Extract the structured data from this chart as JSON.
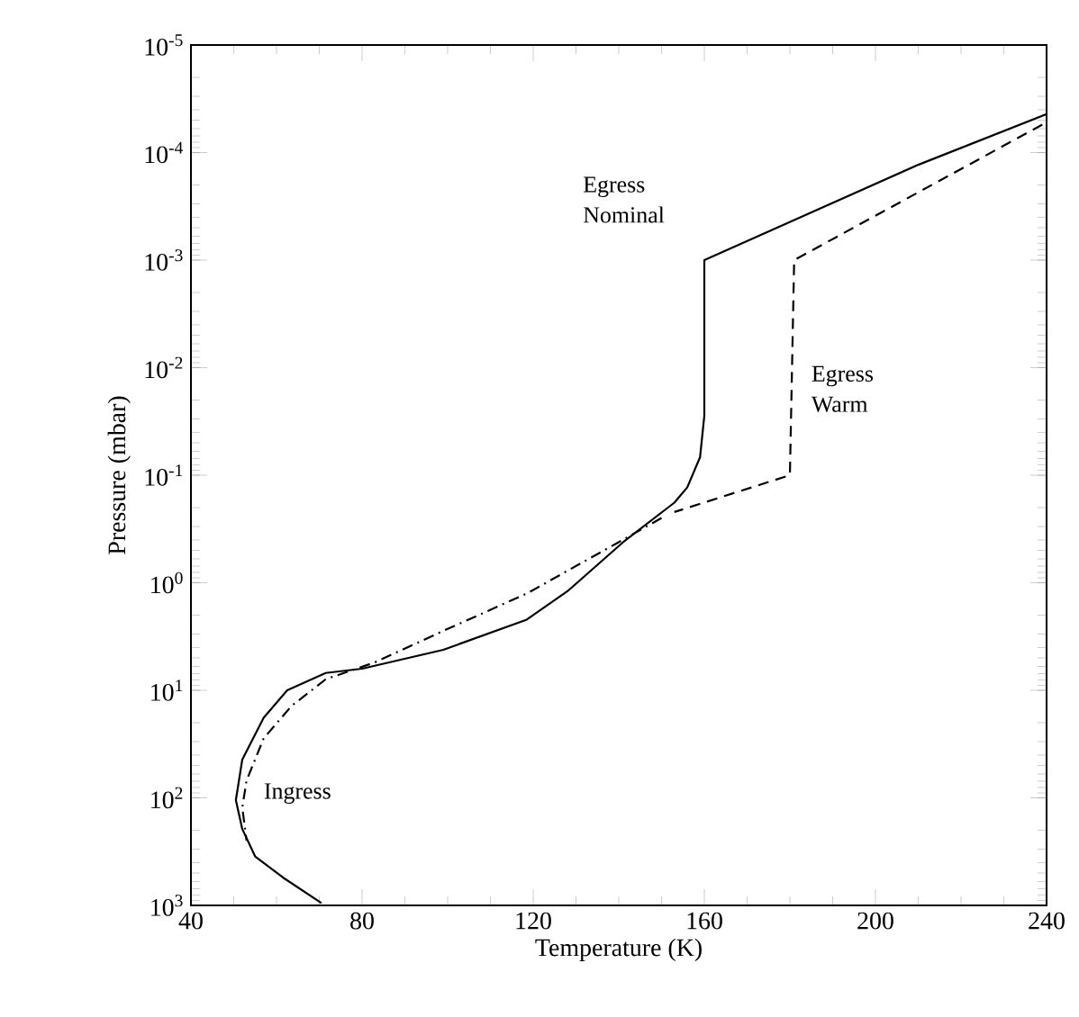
{
  "chart_data": {
    "type": "line",
    "xlabel": "Temperature (K)",
    "ylabel": "Pressure (mbar)",
    "log": "y",
    "marker": "none",
    "grid": false,
    "xlim": [
      40,
      240
    ],
    "xticks": [
      40,
      80,
      120,
      160,
      200,
      240
    ],
    "ylim": [
      1000,
      1e-05
    ],
    "yticks": [
      {
        "value": 1e-05,
        "label": "10$^{-5}$"
      },
      {
        "value": 0.0001,
        "label": "10$^{-4}$"
      },
      {
        "value": 0.001,
        "label": "10$^{-3}$"
      },
      {
        "value": 0.01,
        "label": "10$^{-2}$"
      },
      {
        "value": 0.1,
        "label": "10$^{-1}$"
      },
      {
        "value": 1,
        "label": "10$^{0}$"
      },
      {
        "value": 10,
        "label": "10$^{1}$"
      },
      {
        "value": 100,
        "label": "10$^{2}$"
      },
      {
        "value": 1000,
        "label": "10$^{3}$"
      }
    ],
    "series": [
      {
        "name": "Egress Nominal",
        "color": "#000000",
        "line_style": "solid",
        "x": [
          240,
          210,
          160,
          160,
          159,
          156,
          153,
          141,
          128,
          118.5,
          99,
          80,
          71.5,
          62.5,
          57,
          52,
          50.5,
          52,
          55,
          61.5,
          70.5
        ],
        "values": [
          4.4e-05,
          0.00013,
          0.001,
          0.028,
          0.068,
          0.13,
          0.18,
          0.42,
          1.2,
          2.2,
          4.2,
          6.3,
          6.9,
          10,
          18,
          44,
          105,
          195,
          350,
          550,
          950
        ]
      },
      {
        "name": "Egress Warm",
        "color": "#000000",
        "line_style": "dashed",
        "x": [
          239,
          181,
          180,
          153
        ],
        "values": [
          5.5e-05,
          0.001,
          0.1,
          0.22
        ]
      },
      {
        "name": "Ingress",
        "color": "#000000",
        "line_style": "dashdot",
        "x": [
          150,
          139.5,
          118.5,
          99,
          83,
          71.5,
          63.5,
          57,
          53,
          52,
          53
        ],
        "values": [
          0.25,
          0.43,
          1.26,
          2.8,
          5.5,
          7.9,
          14,
          28,
          69,
          123,
          250
        ]
      }
    ]
  }
}
